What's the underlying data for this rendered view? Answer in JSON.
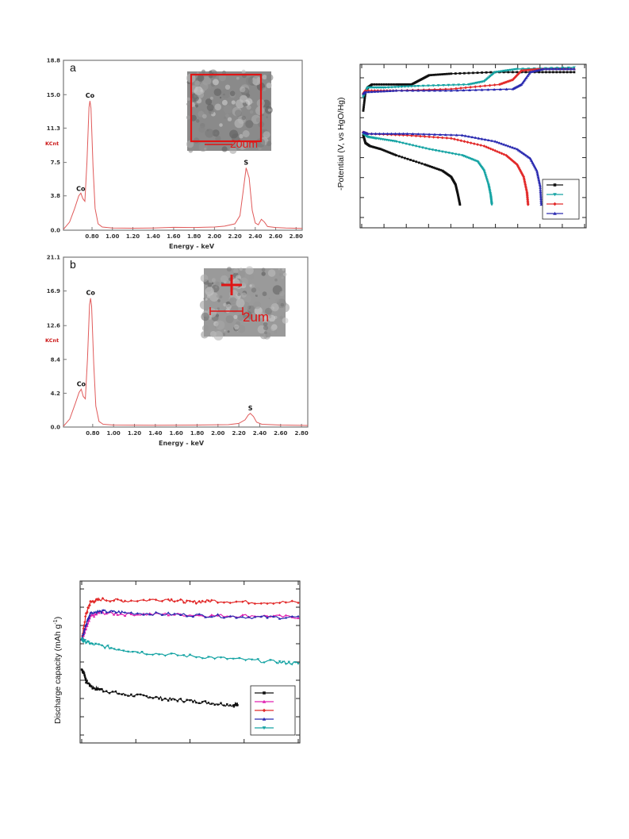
{
  "colors": {
    "edx_line": "#e05a5a",
    "edx_frame": "#666666",
    "black": "#111111",
    "teal": "#14a3a3",
    "red": "#e22a2a",
    "blue": "#2a2ab0",
    "magenta": "#e020b0"
  },
  "chart_data": [
    {
      "id": "edx_a",
      "type": "line",
      "panel_label": "a",
      "xlabel": "Energy - keV",
      "ylabel": "KCnt",
      "xlim": [
        0.52,
        2.86
      ],
      "ylim": [
        0.0,
        18.8
      ],
      "x_ticks": [
        "0.80",
        "1.00",
        "1.20",
        "1.40",
        "1.60",
        "1.80",
        "2.00",
        "2.20",
        "2.40",
        "2.60",
        "2.80"
      ],
      "y_ticks": [
        "0.0",
        "3.8",
        "7.5",
        "11.3",
        "15.0",
        "18.8"
      ],
      "peaks": [
        {
          "label": "Co",
          "x": 0.69,
          "y": 4.0
        },
        {
          "label": "Co",
          "x": 0.78,
          "y": 14.3
        },
        {
          "label": "S",
          "x": 2.31,
          "y": 6.9
        }
      ],
      "profile": [
        [
          0.52,
          0.1
        ],
        [
          0.58,
          0.9
        ],
        [
          0.63,
          2.4
        ],
        [
          0.67,
          3.8
        ],
        [
          0.69,
          4.1
        ],
        [
          0.71,
          3.5
        ],
        [
          0.73,
          3.2
        ],
        [
          0.75,
          7.5
        ],
        [
          0.77,
          13.6
        ],
        [
          0.78,
          14.3
        ],
        [
          0.79,
          13.5
        ],
        [
          0.81,
          7.0
        ],
        [
          0.83,
          2.4
        ],
        [
          0.86,
          0.7
        ],
        [
          0.9,
          0.35
        ],
        [
          1.0,
          0.25
        ],
        [
          1.2,
          0.22
        ],
        [
          1.4,
          0.25
        ],
        [
          1.6,
          0.32
        ],
        [
          1.8,
          0.3
        ],
        [
          2.0,
          0.35
        ],
        [
          2.1,
          0.45
        ],
        [
          2.2,
          0.7
        ],
        [
          2.25,
          1.6
        ],
        [
          2.28,
          4.2
        ],
        [
          2.31,
          6.9
        ],
        [
          2.34,
          5.8
        ],
        [
          2.37,
          2.2
        ],
        [
          2.4,
          0.8
        ],
        [
          2.43,
          0.6
        ],
        [
          2.46,
          1.2
        ],
        [
          2.49,
          0.9
        ],
        [
          2.52,
          0.4
        ],
        [
          2.6,
          0.3
        ],
        [
          2.7,
          0.25
        ],
        [
          2.86,
          0.2
        ]
      ],
      "inset_scale": "20um"
    },
    {
      "id": "edx_b",
      "type": "line",
      "panel_label": "b",
      "xlabel": "Energy - keV",
      "ylabel": "KCnt",
      "xlim": [
        0.52,
        2.86
      ],
      "ylim": [
        0.0,
        21.1
      ],
      "x_ticks": [
        "0.80",
        "1.00",
        "1.20",
        "1.40",
        "1.60",
        "1.80",
        "2.00",
        "2.20",
        "2.40",
        "2.60",
        "2.80"
      ],
      "y_ticks": [
        "0.0",
        "4.2",
        "8.4",
        "12.6",
        "16.9",
        "21.1"
      ],
      "peaks": [
        {
          "label": "Co",
          "x": 0.69,
          "y": 4.7
        },
        {
          "label": "Co",
          "x": 0.78,
          "y": 16.0
        },
        {
          "label": "S",
          "x": 2.31,
          "y": 1.7
        }
      ],
      "profile": [
        [
          0.52,
          0.1
        ],
        [
          0.58,
          1.0
        ],
        [
          0.63,
          2.8
        ],
        [
          0.67,
          4.3
        ],
        [
          0.69,
          4.7
        ],
        [
          0.71,
          3.8
        ],
        [
          0.73,
          3.5
        ],
        [
          0.75,
          8.5
        ],
        [
          0.77,
          15.2
        ],
        [
          0.78,
          16.0
        ],
        [
          0.79,
          15.0
        ],
        [
          0.81,
          7.8
        ],
        [
          0.83,
          2.6
        ],
        [
          0.86,
          0.7
        ],
        [
          0.9,
          0.35
        ],
        [
          1.0,
          0.25
        ],
        [
          1.4,
          0.22
        ],
        [
          1.8,
          0.25
        ],
        [
          2.1,
          0.3
        ],
        [
          2.2,
          0.45
        ],
        [
          2.26,
          0.9
        ],
        [
          2.29,
          1.5
        ],
        [
          2.31,
          1.7
        ],
        [
          2.34,
          1.3
        ],
        [
          2.37,
          0.6
        ],
        [
          2.42,
          0.35
        ],
        [
          2.6,
          0.25
        ],
        [
          2.86,
          0.2
        ]
      ],
      "inset_scale": "2um"
    },
    {
      "id": "charge_discharge",
      "type": "line",
      "ylabel": "-Potential (V, vs HgO/Hg)",
      "xlabel": "",
      "xlim": [
        0,
        100
      ],
      "ylim": [
        0,
        100
      ],
      "y_tick_count": 8,
      "x_tick_count": 11,
      "series": [
        {
          "color": "black",
          "marker": "square",
          "charge": [
            [
              0,
              73
            ],
            [
              1,
              85
            ],
            [
              2,
              88
            ],
            [
              4,
              90
            ],
            [
              15,
              90
            ],
            [
              22,
              90
            ],
            [
              26,
              93
            ],
            [
              30,
              96
            ],
            [
              40,
              97
            ],
            [
              60,
              98
            ],
            [
              80,
              98
            ],
            [
              96,
              98
            ]
          ],
          "discharge": [
            [
              0,
              57
            ],
            [
              1,
              52
            ],
            [
              3,
              50
            ],
            [
              8,
              48
            ],
            [
              15,
              44
            ],
            [
              28,
              38
            ],
            [
              36,
              34
            ],
            [
              40,
              30
            ],
            [
              42,
              25
            ],
            [
              43,
              19
            ],
            [
              44,
              12
            ]
          ]
        },
        {
          "color": "teal",
          "marker": "triangle-down",
          "charge": [
            [
              0,
              82
            ],
            [
              2,
              88
            ],
            [
              10,
              88
            ],
            [
              25,
              89
            ],
            [
              48,
              90
            ],
            [
              55,
              92
            ],
            [
              60,
              98
            ],
            [
              70,
              100
            ],
            [
              96,
              101
            ]
          ],
          "discharge": [
            [
              0,
              58
            ],
            [
              2,
              56
            ],
            [
              6,
              55
            ],
            [
              15,
              53
            ],
            [
              30,
              48
            ],
            [
              45,
              44
            ],
            [
              52,
              40
            ],
            [
              55,
              34
            ],
            [
              57,
              25
            ],
            [
              58,
              18
            ],
            [
              58.5,
              12
            ]
          ]
        },
        {
          "color": "red",
          "marker": "diamond",
          "charge": [
            [
              0,
              84
            ],
            [
              1,
              86
            ],
            [
              15,
              86
            ],
            [
              40,
              87
            ],
            [
              62,
              90
            ],
            [
              68,
              93
            ],
            [
              72,
              99
            ],
            [
              80,
              100
            ],
            [
              96,
              100
            ]
          ],
          "discharge": [
            [
              0,
              59
            ],
            [
              2,
              58
            ],
            [
              20,
              57
            ],
            [
              40,
              55
            ],
            [
              55,
              50
            ],
            [
              65,
              44
            ],
            [
              70,
              38
            ],
            [
              73,
              30
            ],
            [
              74.5,
              20
            ],
            [
              75,
              12
            ]
          ]
        },
        {
          "color": "blue",
          "marker": "triangle-up",
          "charge": [
            [
              0,
              84
            ],
            [
              1,
              85
            ],
            [
              15,
              86
            ],
            [
              40,
              86
            ],
            [
              68,
              87
            ],
            [
              72,
              90
            ],
            [
              76,
              98
            ],
            [
              82,
              100
            ],
            [
              96,
              100
            ]
          ],
          "discharge": [
            [
              0,
              59
            ],
            [
              2,
              58
            ],
            [
              20,
              58
            ],
            [
              45,
              57
            ],
            [
              60,
              53
            ],
            [
              70,
              48
            ],
            [
              76,
              42
            ],
            [
              79,
              34
            ],
            [
              80.5,
              24
            ],
            [
              81,
              12
            ]
          ]
        }
      ],
      "legend_position": "bottom-right"
    },
    {
      "id": "cycling",
      "type": "line",
      "ylabel": "Discharge capacity (mAh g",
      "ylabel_sup": "-1",
      "ylabel_close": ")",
      "xlabel": "",
      "xlim": [
        0,
        100
      ],
      "ylim": [
        0,
        100
      ],
      "y_tick_count": 9,
      "x_tick_count": 5,
      "series": [
        {
          "color": "black",
          "marker": "square",
          "points": [
            [
              0,
              45
            ],
            [
              1,
              43
            ],
            [
              2,
              37
            ],
            [
              5,
              33
            ],
            [
              10,
              31
            ],
            [
              20,
              28
            ],
            [
              30,
              27
            ],
            [
              40,
              25
            ],
            [
              50,
              24
            ],
            [
              60,
              22.5
            ],
            [
              70,
              21
            ],
            [
              72,
              22
            ]
          ]
        },
        {
          "color": "magenta",
          "marker": "triangle-up",
          "points": [
            [
              0,
              65
            ],
            [
              2,
              72
            ],
            [
              4,
              80
            ],
            [
              8,
              83
            ],
            [
              20,
              82
            ],
            [
              40,
              82
            ],
            [
              60,
              81
            ],
            [
              80,
              81
            ],
            [
              100,
              80
            ]
          ]
        },
        {
          "color": "red",
          "marker": "diamond",
          "points": [
            [
              0,
              65
            ],
            [
              2,
              82
            ],
            [
              4,
              90
            ],
            [
              8,
              92
            ],
            [
              20,
              91
            ],
            [
              40,
              92
            ],
            [
              50,
              90
            ],
            [
              60,
              91
            ],
            [
              80,
              90
            ],
            [
              100,
              90
            ]
          ]
        },
        {
          "color": "blue",
          "marker": "triangle-up",
          "points": [
            [
              0,
              65
            ],
            [
              2,
              75
            ],
            [
              4,
              83
            ],
            [
              10,
              84
            ],
            [
              20,
              83
            ],
            [
              40,
              82
            ],
            [
              60,
              81
            ],
            [
              80,
              80
            ],
            [
              100,
              80
            ]
          ]
        },
        {
          "color": "teal",
          "marker": "triangle-down",
          "points": [
            [
              0,
              65
            ],
            [
              1,
              64
            ],
            [
              5,
              62
            ],
            [
              15,
              59
            ],
            [
              30,
              56
            ],
            [
              50,
              54
            ],
            [
              70,
              52
            ],
            [
              90,
              50
            ],
            [
              100,
              49
            ]
          ]
        }
      ],
      "legend_position": "bottom-right"
    }
  ]
}
